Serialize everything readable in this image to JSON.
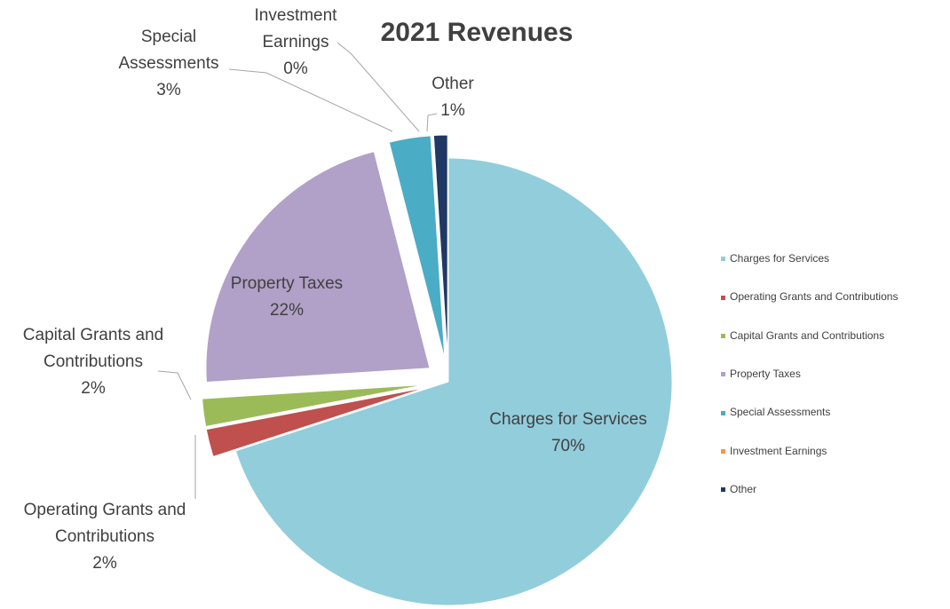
{
  "chart_data": {
    "type": "pie",
    "title": "2021 Revenues",
    "categories": [
      "Charges for Services",
      "Operating Grants and Contributions",
      "Capital Grants and Contributions",
      "Property Taxes",
      "Special Assessments",
      "Investment Earnings",
      "Other"
    ],
    "values": [
      70,
      2,
      2,
      22,
      3,
      0,
      1
    ],
    "value_labels": [
      "70%",
      "2%",
      "2%",
      "22%",
      "3%",
      "0%",
      "1%"
    ],
    "colors": [
      "#92cddc",
      "#c0504d",
      "#9bbb59",
      "#b1a0c7",
      "#4bacc6",
      "#f79646",
      "#1f3864"
    ],
    "legend": "right"
  }
}
